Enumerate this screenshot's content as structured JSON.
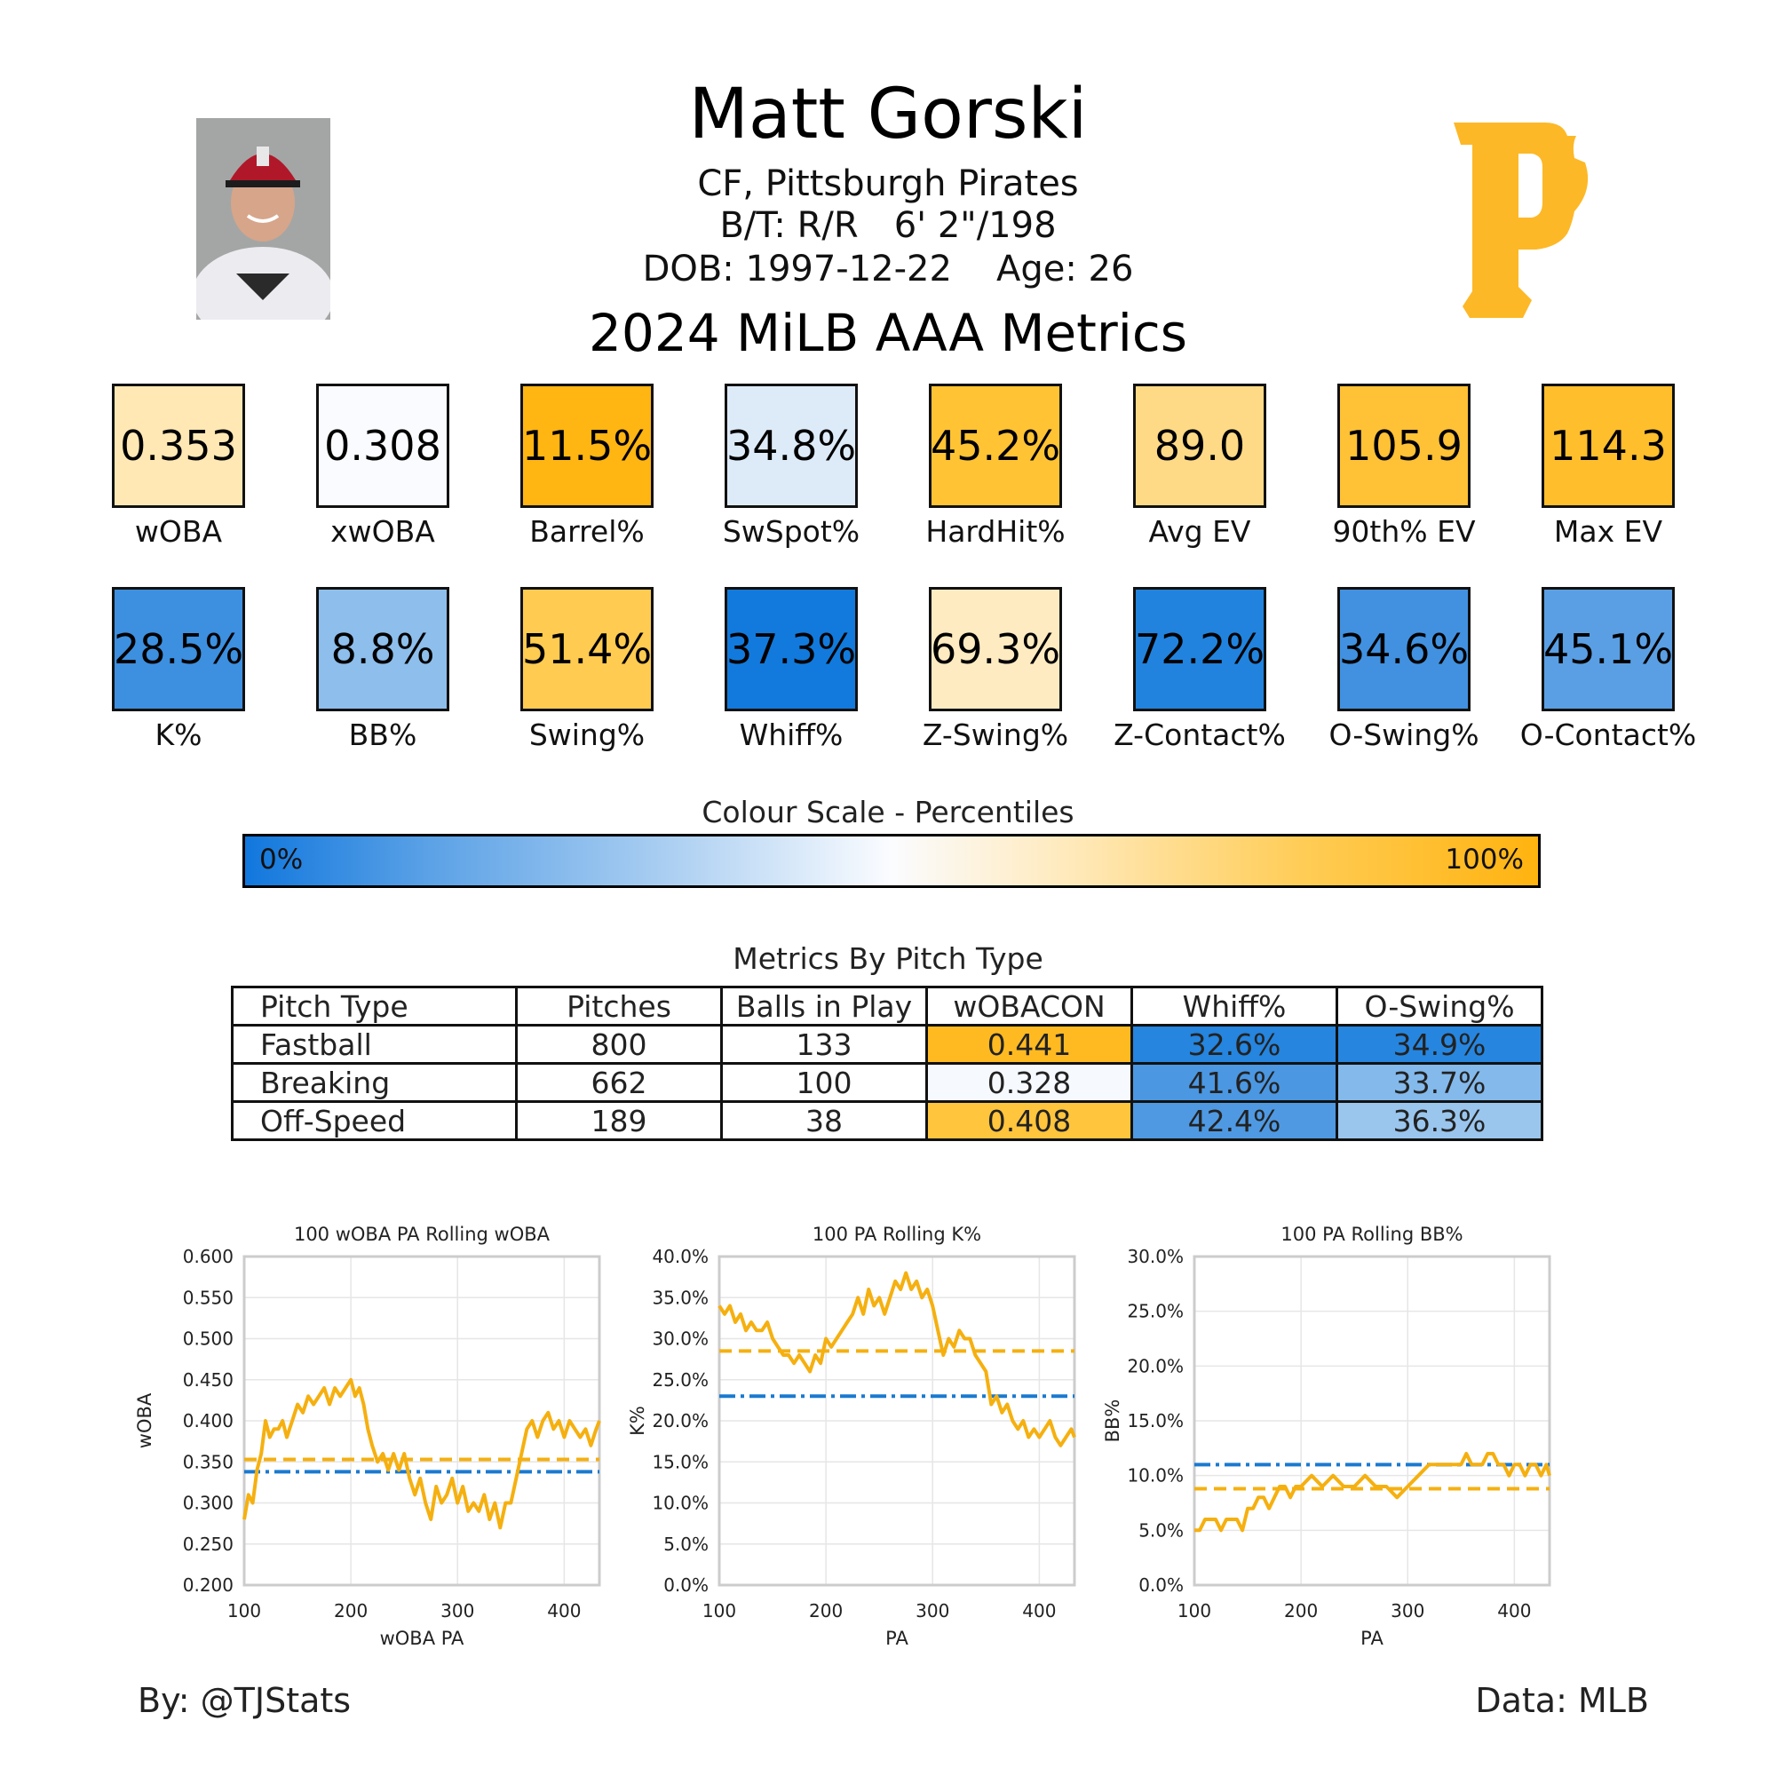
{
  "header": {
    "name": "Matt Gorski",
    "position_team": "CF, Pittsburgh Pirates",
    "bats_throws": "B/T: R/R",
    "height_weight": "6' 2\"/198",
    "dob": "DOB: 1997-12-22",
    "age": "Age: 26",
    "season_title": "2024 MiLB AAA Metrics"
  },
  "colors": {
    "team_gold": "#FDB827",
    "low": "#1177DD",
    "high": "#FFB30F",
    "league_line": "#1A7AD0",
    "player_line": "#F5B010"
  },
  "metrics_row1": [
    {
      "value": "0.353",
      "label": "wOBA",
      "color": "#FFE8B4"
    },
    {
      "value": "0.308",
      "label": "xwOBA",
      "color": "#F9FBFE"
    },
    {
      "value": "11.5%",
      "label": "Barrel%",
      "color": "#FFB512"
    },
    {
      "value": "34.8%",
      "label": "SwSpot%",
      "color": "#DDEBF9"
    },
    {
      "value": "45.2%",
      "label": "HardHit%",
      "color": "#FFC334"
    },
    {
      "value": "89.0",
      "label": "Avg EV",
      "color": "#FFDA86"
    },
    {
      "value": "105.9",
      "label": "90th% EV",
      "color": "#FFC136"
    },
    {
      "value": "114.3",
      "label": "Max EV",
      "color": "#FFBE2C"
    }
  ],
  "metrics_row2": [
    {
      "value": "28.5%",
      "label": "K%",
      "color": "#3D8FE0"
    },
    {
      "value": "8.8%",
      "label": "BB%",
      "color": "#8DBEEC"
    },
    {
      "value": "51.4%",
      "label": "Swing%",
      "color": "#FFCB50"
    },
    {
      "value": "37.3%",
      "label": "Whiff%",
      "color": "#127ADC"
    },
    {
      "value": "69.3%",
      "label": "Z-Swing%",
      "color": "#FFEBC1"
    },
    {
      "value": "72.2%",
      "label": "Z-Contact%",
      "color": "#2183DE"
    },
    {
      "value": "34.6%",
      "label": "O-Swing%",
      "color": "#4191E0"
    },
    {
      "value": "45.1%",
      "label": "O-Contact%",
      "color": "#5A9FE4"
    }
  ],
  "colour_scale": {
    "title": "Colour Scale - Percentiles",
    "low_label": "0%",
    "high_label": "100%"
  },
  "pitch_table": {
    "title": "Metrics By Pitch Type",
    "headers": [
      "Pitch Type",
      "Pitches",
      "Balls in Play",
      "wOBACON",
      "Whiff%",
      "O-Swing%"
    ],
    "rows": [
      {
        "cells": [
          "Fastball",
          "800",
          "133",
          "0.441",
          "32.6%",
          "34.9%"
        ],
        "colors": [
          "#FFFFFF",
          "#FFFFFF",
          "#FFFFFF",
          "#FFBA22",
          "#2585DF",
          "#2686DF"
        ]
      },
      {
        "cells": [
          "Breaking",
          "662",
          "100",
          "0.328",
          "41.6%",
          "33.7%"
        ],
        "colors": [
          "#FFFFFF",
          "#FFFFFF",
          "#FFFFFF",
          "#F6F9FE",
          "#4B97E2",
          "#84B9EB"
        ]
      },
      {
        "cells": [
          "Off-Speed",
          "189",
          "38",
          "0.408",
          "42.4%",
          "36.3%"
        ],
        "colors": [
          "#FFFFFF",
          "#FFFFFF",
          "#FFFFFF",
          "#FFC53C",
          "#4F99E3",
          "#9AC6EE"
        ]
      }
    ]
  },
  "chart_data": [
    {
      "type": "line",
      "title": "100 wOBA PA Rolling wOBA",
      "xlabel": "wOBA PA",
      "ylabel": "wOBA",
      "xlim": [
        100,
        433
      ],
      "ylim": [
        0.2,
        0.6
      ],
      "xticks": [
        100,
        200,
        300,
        400
      ],
      "xtick_labels": [
        "100",
        "200",
        "300",
        "400"
      ],
      "yticks": [
        0.2,
        0.25,
        0.3,
        0.35,
        0.4,
        0.45,
        0.5,
        0.55,
        0.6
      ],
      "ytick_labels": [
        "0.200",
        "0.250",
        "0.300",
        "0.350",
        "0.400",
        "0.450",
        "0.500",
        "0.550",
        "0.600"
      ],
      "grid": true,
      "league_avg": 0.338,
      "player_avg": 0.353,
      "x": [
        100,
        104,
        108,
        112,
        116,
        120,
        124,
        128,
        132,
        136,
        140,
        145,
        150,
        155,
        160,
        165,
        170,
        175,
        180,
        185,
        190,
        195,
        200,
        204,
        208,
        212,
        216,
        220,
        225,
        230,
        235,
        240,
        245,
        250,
        255,
        260,
        265,
        270,
        275,
        280,
        285,
        290,
        295,
        300,
        305,
        310,
        315,
        320,
        325,
        330,
        335,
        340,
        345,
        350,
        355,
        360,
        365,
        370,
        375,
        380,
        385,
        390,
        395,
        400,
        405,
        410,
        415,
        420,
        425,
        430,
        433
      ],
      "y": [
        0.28,
        0.31,
        0.3,
        0.34,
        0.36,
        0.4,
        0.38,
        0.39,
        0.39,
        0.4,
        0.38,
        0.4,
        0.42,
        0.41,
        0.43,
        0.42,
        0.43,
        0.44,
        0.42,
        0.44,
        0.43,
        0.44,
        0.45,
        0.43,
        0.44,
        0.42,
        0.39,
        0.37,
        0.35,
        0.36,
        0.34,
        0.36,
        0.34,
        0.36,
        0.33,
        0.31,
        0.33,
        0.3,
        0.28,
        0.32,
        0.3,
        0.31,
        0.33,
        0.3,
        0.32,
        0.29,
        0.3,
        0.29,
        0.31,
        0.28,
        0.3,
        0.27,
        0.3,
        0.3,
        0.33,
        0.36,
        0.39,
        0.4,
        0.38,
        0.4,
        0.41,
        0.39,
        0.4,
        0.38,
        0.4,
        0.39,
        0.38,
        0.39,
        0.37,
        0.39,
        0.4
      ]
    },
    {
      "type": "line",
      "title": "100 PA Rolling K%",
      "xlabel": "PA",
      "ylabel": "K%",
      "xlim": [
        100,
        433
      ],
      "ylim": [
        0.0,
        40.0
      ],
      "xticks": [
        100,
        200,
        300,
        400
      ],
      "xtick_labels": [
        "100",
        "200",
        "300",
        "400"
      ],
      "yticks": [
        0,
        5,
        10,
        15,
        20,
        25,
        30,
        35,
        40
      ],
      "ytick_labels": [
        "0.0%",
        "5.0%",
        "10.0%",
        "15.0%",
        "20.0%",
        "25.0%",
        "30.0%",
        "35.0%",
        "40.0%"
      ],
      "grid": true,
      "league_avg": 23.0,
      "player_avg": 28.5,
      "x": [
        100,
        105,
        110,
        115,
        120,
        125,
        130,
        135,
        140,
        145,
        150,
        155,
        160,
        165,
        170,
        175,
        180,
        185,
        190,
        195,
        200,
        205,
        210,
        215,
        220,
        225,
        230,
        235,
        240,
        245,
        250,
        255,
        260,
        265,
        270,
        275,
        280,
        285,
        290,
        295,
        300,
        305,
        310,
        315,
        320,
        325,
        330,
        335,
        340,
        345,
        350,
        355,
        360,
        365,
        370,
        375,
        380,
        385,
        390,
        395,
        400,
        405,
        410,
        415,
        420,
        425,
        430,
        433
      ],
      "y": [
        34,
        33,
        34,
        32,
        33,
        31,
        32,
        31,
        31,
        32,
        30,
        29,
        28,
        28,
        27,
        28,
        27,
        26,
        28,
        27,
        30,
        29,
        30,
        31,
        32,
        33,
        35,
        33,
        36,
        34,
        35,
        33,
        35,
        37,
        36,
        38,
        36,
        37,
        35,
        36,
        34,
        31,
        28,
        30,
        29,
        31,
        30,
        30,
        28,
        27,
        26,
        22,
        23,
        21,
        22,
        20,
        19,
        20,
        18,
        19,
        18,
        19,
        20,
        18,
        17,
        18,
        19,
        18
      ]
    },
    {
      "type": "line",
      "title": "100 PA Rolling BB%",
      "xlabel": "PA",
      "ylabel": "BB%",
      "xlim": [
        100,
        433
      ],
      "ylim": [
        0.0,
        30.0
      ],
      "xticks": [
        100,
        200,
        300,
        400
      ],
      "xtick_labels": [
        "100",
        "200",
        "300",
        "400"
      ],
      "yticks": [
        0,
        5,
        10,
        15,
        20,
        25,
        30
      ],
      "ytick_labels": [
        "0.0%",
        "5.0%",
        "10.0%",
        "15.0%",
        "20.0%",
        "25.0%",
        "30.0%"
      ],
      "grid": true,
      "league_avg": 11.0,
      "player_avg": 8.8,
      "x": [
        100,
        105,
        110,
        115,
        120,
        125,
        130,
        135,
        140,
        145,
        150,
        155,
        160,
        165,
        170,
        175,
        180,
        185,
        190,
        195,
        200,
        210,
        220,
        230,
        240,
        250,
        260,
        270,
        280,
        290,
        300,
        310,
        320,
        330,
        340,
        350,
        355,
        360,
        365,
        370,
        375,
        380,
        385,
        390,
        395,
        400,
        405,
        410,
        415,
        420,
        425,
        430,
        433
      ],
      "y": [
        5,
        5,
        6,
        6,
        6,
        5,
        6,
        6,
        6,
        5,
        7,
        7,
        8,
        8,
        7,
        8,
        9,
        9,
        8,
        9,
        9,
        10,
        9,
        10,
        9,
        9,
        10,
        9,
        9,
        8,
        9,
        10,
        11,
        11,
        11,
        11,
        12,
        11,
        11,
        11,
        12,
        12,
        11,
        11,
        10,
        11,
        11,
        10,
        11,
        11,
        10,
        11,
        10
      ]
    }
  ],
  "footer": {
    "credit": "By: @TJStats",
    "source": "Data: MLB"
  }
}
